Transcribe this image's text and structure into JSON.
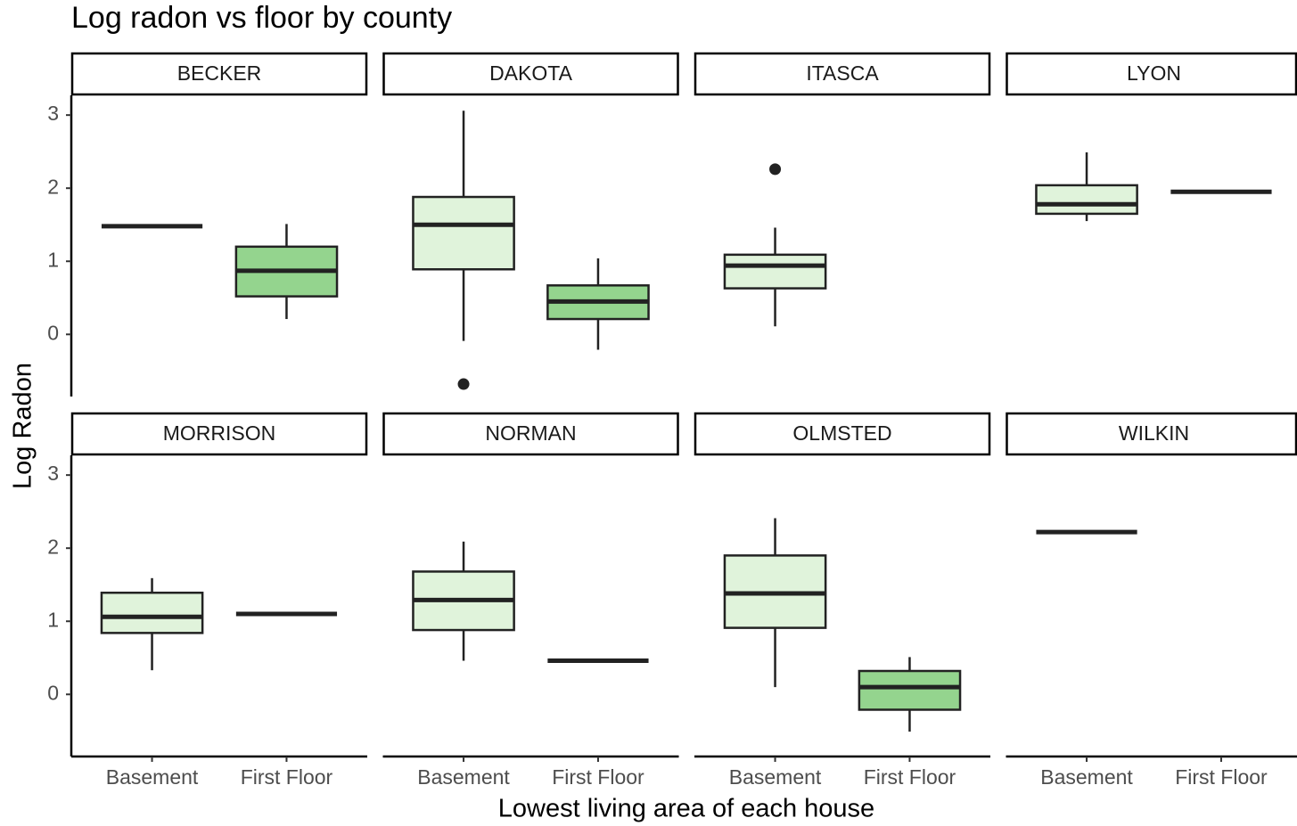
{
  "chart_data": {
    "type": "box",
    "title": "Log radon vs floor by county",
    "xlabel": "Lowest living area of each house",
    "ylabel": "Log Radon",
    "categories": [
      "Basement",
      "First Floor"
    ],
    "fills": [
      "#e0f3db",
      "#94d48e"
    ],
    "ylim": [
      -0.85,
      3.27
    ],
    "yticks": [
      0,
      1,
      2,
      3
    ],
    "ncol": 4,
    "facets": [
      {
        "name": "BECKER",
        "boxes": [
          {
            "min": 1.48,
            "q1": 1.48,
            "median": 1.48,
            "q3": 1.48,
            "max": 1.48
          },
          {
            "min": 0.21,
            "q1": 0.52,
            "median": 0.87,
            "q3": 1.2,
            "max": 1.51
          }
        ]
      },
      {
        "name": "DAKOTA",
        "boxes": [
          {
            "min": -0.09,
            "q1": 0.89,
            "median": 1.5,
            "q3": 1.88,
            "max": 3.06,
            "outliers": [
              -0.68
            ]
          },
          {
            "min": -0.21,
            "q1": 0.21,
            "median": 0.45,
            "q3": 0.67,
            "max": 1.04
          }
        ]
      },
      {
        "name": "ITASCA",
        "boxes": [
          {
            "min": 0.11,
            "q1": 0.63,
            "median": 0.94,
            "q3": 1.09,
            "max": 1.46,
            "outliers": [
              2.26
            ]
          },
          null
        ]
      },
      {
        "name": "LYON",
        "boxes": [
          {
            "min": 1.55,
            "q1": 1.65,
            "median": 1.78,
            "q3": 2.04,
            "max": 2.49
          },
          {
            "min": 1.95,
            "q1": 1.95,
            "median": 1.95,
            "q3": 1.95,
            "max": 1.95
          }
        ]
      },
      {
        "name": "MORRISON",
        "boxes": [
          {
            "min": 0.33,
            "q1": 0.84,
            "median": 1.06,
            "q3": 1.39,
            "max": 1.59
          },
          {
            "min": 1.1,
            "q1": 1.1,
            "median": 1.1,
            "q3": 1.1,
            "max": 1.1
          }
        ]
      },
      {
        "name": "NORMAN",
        "boxes": [
          {
            "min": 0.46,
            "q1": 0.88,
            "median": 1.29,
            "q3": 1.68,
            "max": 2.09
          },
          {
            "min": 0.46,
            "q1": 0.46,
            "median": 0.46,
            "q3": 0.46,
            "max": 0.46
          }
        ]
      },
      {
        "name": "OLMSTED",
        "boxes": [
          {
            "min": 0.1,
            "q1": 0.91,
            "median": 1.38,
            "q3": 1.9,
            "max": 2.41
          },
          {
            "min": -0.51,
            "q1": -0.21,
            "median": 0.1,
            "q3": 0.32,
            "max": 0.51
          }
        ]
      },
      {
        "name": "WILKIN",
        "boxes": [
          {
            "min": 2.22,
            "q1": 2.22,
            "median": 2.22,
            "q3": 2.22,
            "max": 2.22
          },
          null
        ]
      }
    ]
  }
}
